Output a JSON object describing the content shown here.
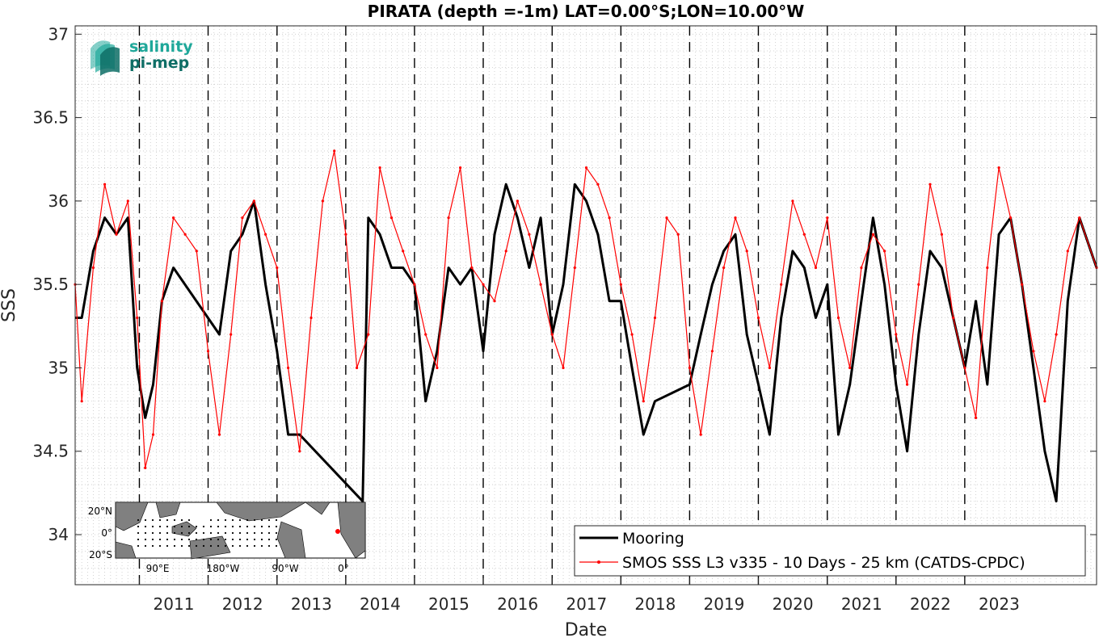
{
  "chart_data": {
    "type": "line",
    "title": "PIRATA (depth =-1m) LAT=0.00°S;LON=10.00°W",
    "xlabel": "Date",
    "ylabel": "SSS",
    "xlim": [
      "2010-01-25",
      "2024-12-01"
    ],
    "ylim": [
      33.7,
      37.05
    ],
    "x_ticks": [
      "2011",
      "2012",
      "2013",
      "2014",
      "2015",
      "2016",
      "2017",
      "2018",
      "2019",
      "2020",
      "2021",
      "2022",
      "2023"
    ],
    "y_ticks": [
      34,
      34.5,
      35,
      35.5,
      36,
      36.5,
      37
    ],
    "y_tick_labels": [
      "34",
      "34.5",
      "35",
      "35.5",
      "36",
      "36.5",
      "37"
    ],
    "grid": "minor-dotted",
    "year_boundaries": "dashed-black",
    "legend_position": "bottom-right",
    "series": [
      {
        "name": "Mooring",
        "color": "#000000",
        "x": [
          "2010-01-25",
          "2010-03-01",
          "2010-05-01",
          "2010-07-01",
          "2010-09-01",
          "2010-11-01",
          "2010-12-20",
          "2011-02-01",
          "2011-03-15",
          "2011-05-01",
          "2011-07-01",
          "2012-03-01",
          "2012-05-01",
          "2012-07-01",
          "2012-09-01",
          "2012-11-01",
          "2013-01-01",
          "2013-03-01",
          "2013-05-01",
          "2014-04-01",
          "2014-05-01",
          "2014-07-01",
          "2014-09-01",
          "2014-11-01",
          "2015-01-01",
          "2015-03-01",
          "2015-05-01",
          "2015-07-01",
          "2015-09-01",
          "2015-11-01",
          "2016-01-01",
          "2016-03-01",
          "2016-05-01",
          "2016-07-01",
          "2016-09-01",
          "2016-11-01",
          "2017-01-01",
          "2017-03-01",
          "2017-05-01",
          "2017-07-01",
          "2017-09-01",
          "2017-11-01",
          "2018-01-01",
          "2018-03-01",
          "2018-05-01",
          "2018-07-01",
          "2019-01-01",
          "2019-03-01",
          "2019-05-01",
          "2019-07-01",
          "2019-09-01",
          "2019-11-01",
          "2020-01-01",
          "2020-03-01",
          "2020-05-01",
          "2020-07-01",
          "2020-09-01",
          "2020-11-01",
          "2021-01-01",
          "2021-03-01",
          "2021-05-01",
          "2021-07-01",
          "2021-09-01",
          "2021-11-01",
          "2022-01-01",
          "2022-03-01",
          "2022-05-01",
          "2022-07-01",
          "2022-09-01",
          "2022-11-01",
          "2023-01-01",
          "2023-03-01",
          "2023-05-01",
          "2023-07-01",
          "2023-09-01",
          "2023-11-01",
          "2024-01-01",
          "2024-03-01",
          "2024-05-01",
          "2024-07-01",
          "2024-09-01",
          "2024-12-01"
        ],
        "y": [
          35.3,
          35.3,
          35.7,
          35.9,
          35.8,
          35.9,
          35.0,
          34.7,
          34.9,
          35.4,
          35.6,
          35.2,
          35.7,
          35.8,
          36.0,
          35.5,
          35.1,
          34.6,
          34.6,
          34.2,
          35.9,
          35.8,
          35.6,
          35.6,
          35.5,
          34.8,
          35.1,
          35.6,
          35.5,
          35.6,
          35.1,
          35.8,
          36.1,
          35.9,
          35.6,
          35.9,
          35.2,
          35.5,
          36.1,
          36.0,
          35.8,
          35.4,
          35.4,
          35.0,
          34.6,
          34.8,
          34.9,
          35.2,
          35.5,
          35.7,
          35.8,
          35.2,
          34.9,
          34.6,
          35.3,
          35.7,
          35.6,
          35.3,
          35.5,
          34.6,
          34.9,
          35.4,
          35.9,
          35.5,
          34.9,
          34.5,
          35.2,
          35.7,
          35.6,
          35.3,
          35.0,
          35.4,
          34.9,
          35.8,
          35.9,
          35.5,
          35.0,
          34.5,
          34.2,
          35.4,
          35.9,
          35.6
        ]
      },
      {
        "name": "SMOS SSS L3 v335 - 10 Days - 25 km (CATDS-CPDC)",
        "color": "#ff0000",
        "x": [
          "2010-01-25",
          "2010-03-01",
          "2010-05-01",
          "2010-07-01",
          "2010-09-01",
          "2010-11-01",
          "2010-12-20",
          "2011-02-01",
          "2011-03-15",
          "2011-05-01",
          "2011-07-01",
          "2011-09-01",
          "2011-11-01",
          "2012-01-01",
          "2012-03-01",
          "2012-05-01",
          "2012-07-01",
          "2012-09-01",
          "2012-11-01",
          "2013-01-01",
          "2013-03-01",
          "2013-05-01",
          "2013-07-01",
          "2013-09-01",
          "2013-11-01",
          "2014-01-01",
          "2014-03-01",
          "2014-05-01",
          "2014-07-01",
          "2014-09-01",
          "2014-11-01",
          "2015-01-01",
          "2015-03-01",
          "2015-05-01",
          "2015-07-01",
          "2015-09-01",
          "2015-11-01",
          "2016-01-01",
          "2016-03-01",
          "2016-05-01",
          "2016-07-01",
          "2016-09-01",
          "2016-11-01",
          "2017-01-01",
          "2017-03-01",
          "2017-05-01",
          "2017-07-01",
          "2017-09-01",
          "2017-11-01",
          "2018-01-01",
          "2018-03-01",
          "2018-05-01",
          "2018-07-01",
          "2018-09-01",
          "2018-11-01",
          "2019-01-01",
          "2019-03-01",
          "2019-05-01",
          "2019-07-01",
          "2019-09-01",
          "2019-11-01",
          "2020-01-01",
          "2020-03-01",
          "2020-05-01",
          "2020-07-01",
          "2020-09-01",
          "2020-11-01",
          "2021-01-01",
          "2021-03-01",
          "2021-05-01",
          "2021-07-01",
          "2021-09-01",
          "2021-11-01",
          "2022-01-01",
          "2022-03-01",
          "2022-05-01",
          "2022-07-01",
          "2022-09-01",
          "2022-11-01",
          "2023-01-01",
          "2023-03-01",
          "2023-05-01",
          "2023-07-01",
          "2023-09-01",
          "2023-11-01",
          "2024-01-01",
          "2024-03-01",
          "2024-05-01",
          "2024-07-01",
          "2024-09-01",
          "2024-12-01"
        ],
        "y": [
          35.5,
          34.8,
          35.6,
          36.1,
          35.8,
          36.0,
          35.3,
          34.4,
          34.6,
          35.4,
          35.9,
          35.8,
          35.7,
          35.1,
          34.6,
          35.2,
          35.9,
          36.0,
          35.8,
          35.6,
          35.0,
          34.5,
          35.3,
          36.0,
          36.3,
          35.8,
          35.0,
          35.2,
          36.2,
          35.9,
          35.7,
          35.5,
          35.2,
          35.0,
          35.9,
          36.2,
          35.6,
          35.5,
          35.4,
          35.7,
          36.0,
          35.8,
          35.5,
          35.2,
          35.0,
          35.6,
          36.2,
          36.1,
          35.9,
          35.5,
          35.2,
          34.8,
          35.3,
          35.9,
          35.8,
          35.0,
          34.6,
          35.1,
          35.6,
          35.9,
          35.7,
          35.3,
          35.0,
          35.5,
          36.0,
          35.8,
          35.6,
          35.9,
          35.3,
          35.0,
          35.6,
          35.8,
          35.7,
          35.2,
          34.9,
          35.5,
          36.1,
          35.8,
          35.3,
          35.0,
          34.7,
          35.6,
          36.2,
          35.9,
          35.5,
          35.1,
          34.8,
          35.2,
          35.7,
          35.9,
          35.6
        ]
      }
    ]
  },
  "logo": {
    "line1": "salinity",
    "line2": "pi-mep",
    "color1": "#1fa89a",
    "color2": "#0e6e66"
  },
  "inset_map": {
    "y_labels": [
      "20°N",
      "0°",
      "20°S"
    ],
    "x_labels": [
      "90°E",
      "180°W",
      "90°W",
      "0°"
    ],
    "ocean_color": "#ffffff",
    "land_color": "#808080",
    "marker_color": "#ff0000"
  }
}
